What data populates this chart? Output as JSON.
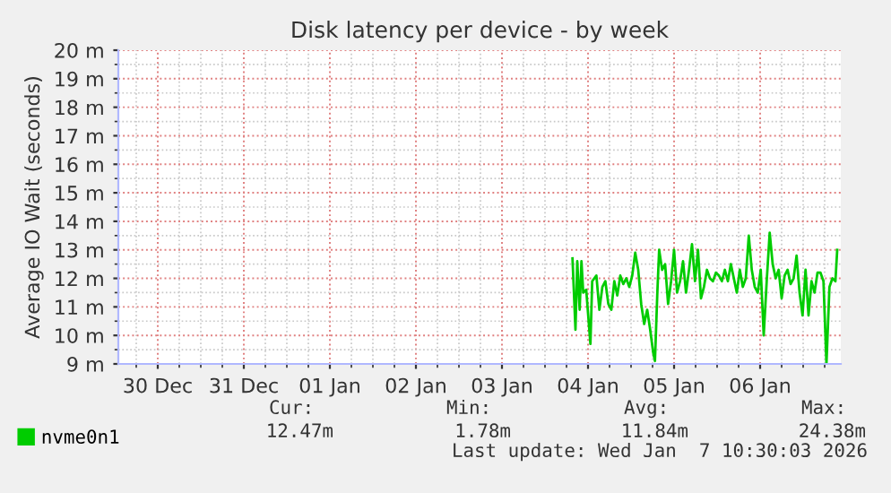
{
  "chart_data": {
    "type": "line",
    "title": "Disk latency per device - by week",
    "ylabel": "Average IO Wait (seconds)",
    "xlim": [
      "2025-12-30T01:00",
      "2026-01-07T10:30"
    ],
    "xticks": [
      {
        "value": "2025-12-30T12:00",
        "label": "30 Dec"
      },
      {
        "value": "2025-12-31T12:00",
        "label": "31 Dec"
      },
      {
        "value": "2026-01-01T12:00",
        "label": "01 Jan"
      },
      {
        "value": "2026-01-02T12:00",
        "label": "02 Jan"
      },
      {
        "value": "2026-01-03T12:00",
        "label": "03 Jan"
      },
      {
        "value": "2026-01-04T12:00",
        "label": "04 Jan"
      },
      {
        "value": "2026-01-05T12:00",
        "label": "05 Jan"
      },
      {
        "value": "2026-01-06T12:00",
        "label": "06 Jan"
      }
    ],
    "ylim": [
      9,
      20
    ],
    "yticks": [
      {
        "value": 9,
        "label": "9 m"
      },
      {
        "value": 10,
        "label": "10 m"
      },
      {
        "value": 11,
        "label": "11 m"
      },
      {
        "value": 12,
        "label": "12 m"
      },
      {
        "value": 13,
        "label": "13 m"
      },
      {
        "value": 14,
        "label": "14 m"
      },
      {
        "value": 15,
        "label": "15 m"
      },
      {
        "value": 16,
        "label": "16 m"
      },
      {
        "value": 17,
        "label": "17 m"
      },
      {
        "value": 18,
        "label": "18 m"
      },
      {
        "value": 19,
        "label": "19 m"
      },
      {
        "value": 20,
        "label": "20 m"
      }
    ],
    "grid": true,
    "legend": "bottom",
    "line_style": "solid",
    "marker": "none",
    "series": [
      {
        "name": "nvme0n1",
        "color": "#00cc00",
        "x": [
          "2026-01-04T07:40",
          "2026-01-04T08:30",
          "2026-01-04T09:00",
          "2026-01-04T09:40",
          "2026-01-04T10:10",
          "2026-01-04T10:40",
          "2026-01-04T11:30",
          "2026-01-04T12:40",
          "2026-01-04T13:10",
          "2026-01-04T14:20",
          "2026-01-04T15:10",
          "2026-01-04T16:00",
          "2026-01-04T16:50",
          "2026-01-04T17:40",
          "2026-01-04T18:30",
          "2026-01-04T19:20",
          "2026-01-04T20:10",
          "2026-01-04T21:00",
          "2026-01-04T21:50",
          "2026-01-04T22:40",
          "2026-01-04T23:30",
          "2026-01-05T00:20",
          "2026-01-05T01:10",
          "2026-01-05T02:00",
          "2026-01-05T02:50",
          "2026-01-05T03:40",
          "2026-01-05T04:30",
          "2026-01-05T05:20",
          "2026-01-05T06:10",
          "2026-01-05T06:40",
          "2026-01-05T07:20",
          "2026-01-05T07:50",
          "2026-01-05T08:40",
          "2026-01-05T09:30",
          "2026-01-05T10:20",
          "2026-01-05T11:10",
          "2026-01-05T12:00",
          "2026-01-05T12:50",
          "2026-01-05T13:40",
          "2026-01-05T14:30",
          "2026-01-05T15:20",
          "2026-01-05T16:10",
          "2026-01-05T17:00",
          "2026-01-05T17:50",
          "2026-01-05T18:40",
          "2026-01-05T19:30",
          "2026-01-05T20:20",
          "2026-01-05T21:10",
          "2026-01-05T22:00",
          "2026-01-05T22:50",
          "2026-01-05T23:40",
          "2026-01-06T00:30",
          "2026-01-06T01:20",
          "2026-01-06T02:10",
          "2026-01-06T03:00",
          "2026-01-06T03:50",
          "2026-01-06T04:40",
          "2026-01-06T05:30",
          "2026-01-06T06:20",
          "2026-01-06T07:10",
          "2026-01-06T08:00",
          "2026-01-06T08:50",
          "2026-01-06T09:40",
          "2026-01-06T10:30",
          "2026-01-06T11:20",
          "2026-01-06T12:10",
          "2026-01-06T13:00",
          "2026-01-06T13:50",
          "2026-01-06T14:40",
          "2026-01-06T15:30",
          "2026-01-06T16:20",
          "2026-01-06T17:10",
          "2026-01-06T18:00",
          "2026-01-06T18:50",
          "2026-01-06T19:40",
          "2026-01-06T20:30",
          "2026-01-06T21:20",
          "2026-01-06T22:10",
          "2026-01-06T23:00",
          "2026-01-06T23:50",
          "2026-01-07T00:40",
          "2026-01-07T01:30",
          "2026-01-07T02:20",
          "2026-01-07T03:10",
          "2026-01-07T04:00",
          "2026-01-07T04:50",
          "2026-01-07T05:40",
          "2026-01-07T06:30",
          "2026-01-07T07:20",
          "2026-01-07T08:10",
          "2026-01-07T09:00",
          "2026-01-07T09:30"
        ],
        "values": [
          12.7,
          10.2,
          12.6,
          10.9,
          12.6,
          11.5,
          11.6,
          9.7,
          11.9,
          12.1,
          10.9,
          11.7,
          11.9,
          11.1,
          10.9,
          11.9,
          11.4,
          12.1,
          11.8,
          12.0,
          11.7,
          12.1,
          12.9,
          12.3,
          11.1,
          10.4,
          10.9,
          10.2,
          9.4,
          9.1,
          11.5,
          13.0,
          12.3,
          12.5,
          11.1,
          11.9,
          13.0,
          11.5,
          11.9,
          12.6,
          11.5,
          12.3,
          13.2,
          11.9,
          13.0,
          11.3,
          11.7,
          12.3,
          12.0,
          11.9,
          12.2,
          12.1,
          11.9,
          12.3,
          11.9,
          12.5,
          12.0,
          11.5,
          12.3,
          11.7,
          12.0,
          13.5,
          12.3,
          11.7,
          11.5,
          12.3,
          10.0,
          11.9,
          13.6,
          12.5,
          12.0,
          12.3,
          11.3,
          12.1,
          12.3,
          11.8,
          12.0,
          12.8,
          11.5,
          10.7,
          12.3,
          10.7,
          11.9,
          11.5,
          12.2,
          12.2,
          11.9,
          9.0,
          11.7,
          12.0,
          11.9,
          13.0
        ]
      }
    ],
    "annotations": [
      "Cur:",
      "Min:",
      "Avg:",
      "Max:",
      "12.47m",
      "1.78m",
      "11.84m",
      "24.38m",
      "Last update: Wed Jan  7 10:30:03 2026"
    ]
  }
}
